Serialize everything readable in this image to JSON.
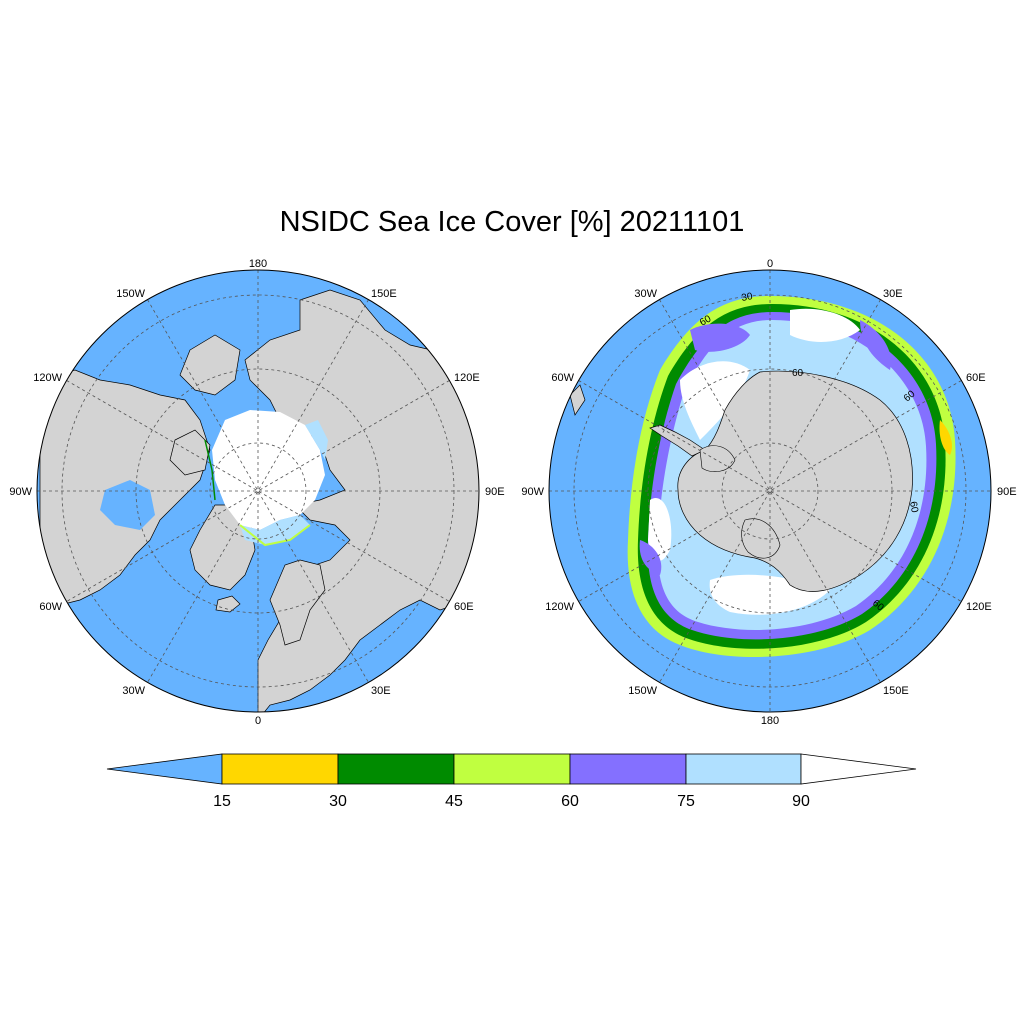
{
  "title": "NSIDC Sea Ice Cover [%] 20211101",
  "colors": {
    "ocean": "#66b3ff",
    "land": "#d3d3d3",
    "c15_30": "#ffd700",
    "c30_45": "#008b00",
    "c45_60": "#c0ff40",
    "c60_75": "#8470ff",
    "c75_90": "#b0e0ff",
    "c90_100": "#ffffff",
    "coast": "#000000",
    "grid": "#555555"
  },
  "north": {
    "labels": {
      "top": "180",
      "bottom": "0",
      "left": "90W",
      "right": "90E",
      "tl30": "150W",
      "tr30": "150E",
      "tl60": "120W",
      "tr60": "120E",
      "bl60": "60W",
      "br60": "60E",
      "bl30": "30W",
      "br30": "30E"
    }
  },
  "south": {
    "labels": {
      "top": "0",
      "bottom": "180",
      "left": "90W",
      "right": "90E",
      "tl30": "30W",
      "tr30": "30E",
      "tl60": "60W",
      "tr60": "60E",
      "bl60": "120W",
      "br60": "120E",
      "bl30": "150W",
      "br30": "150E"
    },
    "contour_labels": [
      "60",
      "30",
      "60",
      "60",
      "60",
      "60"
    ]
  },
  "colorbar": {
    "ticks": [
      "15",
      "30",
      "45",
      "60",
      "75",
      "90"
    ]
  }
}
